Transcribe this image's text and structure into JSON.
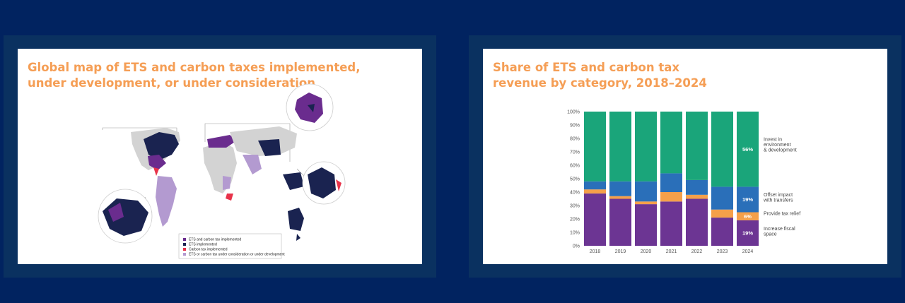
{
  "map_panel": {
    "title": "Global map of ETS and carbon taxes implemented,\nunder development, or under consideration",
    "legend": [
      {
        "label": "ETS and carbon tax implemented",
        "color": "#6a2c8e"
      },
      {
        "label": "ETS implemented",
        "color": "#1a2350"
      },
      {
        "label": "Carbon tax implemented",
        "color": "#e8334a"
      },
      {
        "label": "ETS or carbon tax under consideration or under development",
        "color": "#b39ad0"
      }
    ]
  },
  "chart_panel": {
    "title": "Share of ETS and carbon tax\nrevenue by category, 2018–2024"
  },
  "chart_data": {
    "type": "bar",
    "stacked": true,
    "categories": [
      "2018",
      "2019",
      "2020",
      "2021",
      "2022",
      "2023",
      "2024"
    ],
    "ylim": [
      0,
      100
    ],
    "yticks": [
      "0%",
      "10%",
      "20%",
      "30%",
      "40%",
      "50%",
      "60%",
      "70%",
      "80%",
      "90%",
      "100%"
    ],
    "series": [
      {
        "name": "Increase fiscal space",
        "color": "#6c3593",
        "values": [
          39,
          35,
          31,
          33,
          35,
          21,
          19
        ]
      },
      {
        "name": "Provide tax relief",
        "color": "#f5a04a",
        "values": [
          3,
          2,
          2,
          7,
          3,
          6,
          6
        ]
      },
      {
        "name": "Offset impact with transfers",
        "color": "#2a6fb9",
        "values": [
          6,
          11,
          15,
          14,
          11,
          17,
          19
        ]
      },
      {
        "name": "Invest in environment & development",
        "color": "#1aa57a",
        "values": [
          52,
          52,
          52,
          46,
          51,
          56,
          56
        ]
      }
    ],
    "data_labels": {
      "2024": [
        "19%",
        "6%",
        "19%",
        "56%"
      ]
    },
    "legend_placement": "right"
  }
}
